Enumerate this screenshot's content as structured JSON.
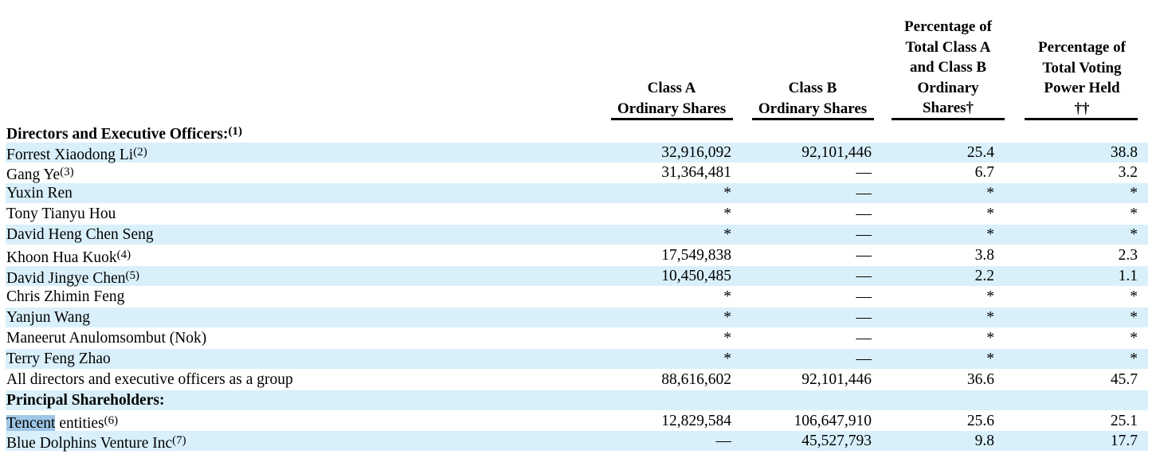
{
  "headers": {
    "class_a": "Class A\nOrdinary Shares",
    "class_b": "Class B\nOrdinary Shares",
    "pct_total": "Percentage of\nTotal Class A\nand Class B\nOrdinary\nShares†",
    "pct_voting": "Percentage of\nTotal Voting\nPower Held\n††"
  },
  "colors": {
    "row_shade": "#d9f0fb",
    "highlight": "#9fc6e6"
  },
  "rows": [
    {
      "name": "Directors and Executive Officers:",
      "note": "(1)",
      "bold": true,
      "shade": false,
      "a": "",
      "b": "",
      "p": "",
      "v": ""
    },
    {
      "name": "Forrest Xiaodong Li",
      "note": "(2)",
      "bold": false,
      "shade": true,
      "a": "32,916,092",
      "b": "92,101,446",
      "p": "25.4",
      "v": "38.8"
    },
    {
      "name": "Gang Ye",
      "note": "(3)",
      "bold": false,
      "shade": false,
      "a": "31,364,481",
      "b": "—",
      "p": "6.7",
      "v": "3.2"
    },
    {
      "name": "Yuxin Ren",
      "note": "",
      "bold": false,
      "shade": true,
      "a": "*",
      "b": "—",
      "p": "*",
      "v": "*"
    },
    {
      "name": "Tony Tianyu Hou",
      "note": "",
      "bold": false,
      "shade": false,
      "a": "*",
      "b": "—",
      "p": "*",
      "v": "*"
    },
    {
      "name": "David Heng Chen Seng",
      "note": "",
      "bold": false,
      "shade": true,
      "a": "*",
      "b": "—",
      "p": "*",
      "v": "*"
    },
    {
      "name": "Khoon Hua Kuok",
      "note": "(4)",
      "bold": false,
      "shade": false,
      "a": "17,549,838",
      "b": "—",
      "p": "3.8",
      "v": "2.3"
    },
    {
      "name": "David Jingye Chen",
      "note": "(5)",
      "bold": false,
      "shade": true,
      "a": "10,450,485",
      "b": "—",
      "p": "2.2",
      "v": "1.1"
    },
    {
      "name": "Chris Zhimin Feng",
      "note": "",
      "bold": false,
      "shade": false,
      "a": "*",
      "b": "—",
      "p": "*",
      "v": "*"
    },
    {
      "name": "Yanjun Wang",
      "note": "",
      "bold": false,
      "shade": true,
      "a": "*",
      "b": "—",
      "p": "*",
      "v": "*"
    },
    {
      "name": "Maneerut Anulomsombut (Nok)",
      "note": "",
      "bold": false,
      "shade": false,
      "a": "*",
      "b": "—",
      "p": "*",
      "v": "*"
    },
    {
      "name": "Terry Feng Zhao",
      "note": "",
      "bold": false,
      "shade": true,
      "a": "*",
      "b": "—",
      "p": "*",
      "v": "*"
    },
    {
      "name": "All directors and executive officers as a group",
      "note": "",
      "bold": false,
      "shade": false,
      "a": "88,616,602",
      "b": "92,101,446",
      "p": "36.6",
      "v": "45.7"
    },
    {
      "name": "Principal Shareholders:",
      "note": "",
      "bold": true,
      "shade": true,
      "a": "",
      "b": "",
      "p": "",
      "v": ""
    },
    {
      "name": "Tencent",
      "name_rest": " entities",
      "note": "(6)",
      "bold": false,
      "shade": false,
      "highlight": true,
      "a": "12,829,584",
      "b": "106,647,910",
      "p": "25.6",
      "v": "25.1"
    },
    {
      "name": "Blue Dolphins Venture Inc",
      "note": "(7)",
      "bold": false,
      "shade": true,
      "a": "—",
      "b": "45,527,793",
      "p": "9.8",
      "v": "17.7"
    }
  ]
}
